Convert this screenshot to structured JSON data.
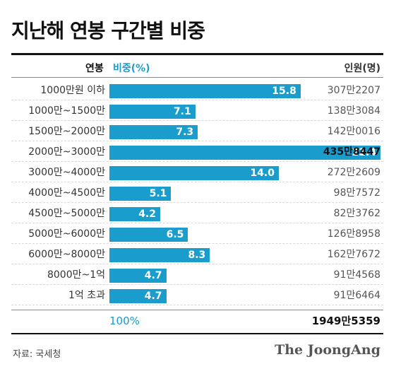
{
  "title": "지난해 연봉 구간별 비중",
  "header": {
    "category": "연봉",
    "percent": "비중(%)",
    "count": "인원(명)"
  },
  "chart_data": {
    "type": "bar",
    "orientation": "horizontal",
    "title": "지난해 연봉 구간별 비중",
    "categories": [
      "1000만원 이하",
      "1000만~1500만",
      "1500만~2000만",
      "2000만~3000만",
      "3000만~4000만",
      "4000만~4500만",
      "4500만~5000만",
      "5000만~6000만",
      "6000만~8000만",
      "8000만~1억",
      "1억 초과"
    ],
    "values": [
      15.8,
      7.1,
      7.3,
      22.4,
      14.0,
      5.1,
      4.2,
      6.5,
      8.3,
      4.7,
      4.7
    ],
    "value_labels": [
      "15.8",
      "7.1",
      "7.3",
      "22.4",
      "14.0",
      "5.1",
      "4.2",
      "6.5",
      "8.3",
      "4.7",
      "4.7"
    ],
    "counts": [
      "307만2207",
      "138만3084",
      "142만0016",
      "435만8447",
      "272만2609",
      "98만7572",
      "82만3762",
      "126만8958",
      "162만7672",
      "91만4568",
      "91만6464"
    ],
    "highlight_index": 3,
    "bar_color": "#1a9ccc",
    "xlim": [
      0,
      22.4
    ],
    "grid": false,
    "total_percent": "100%",
    "total_count": "1949만5359"
  },
  "footer": {
    "source": "자료: 국세청",
    "brand": "The JoongAng"
  }
}
